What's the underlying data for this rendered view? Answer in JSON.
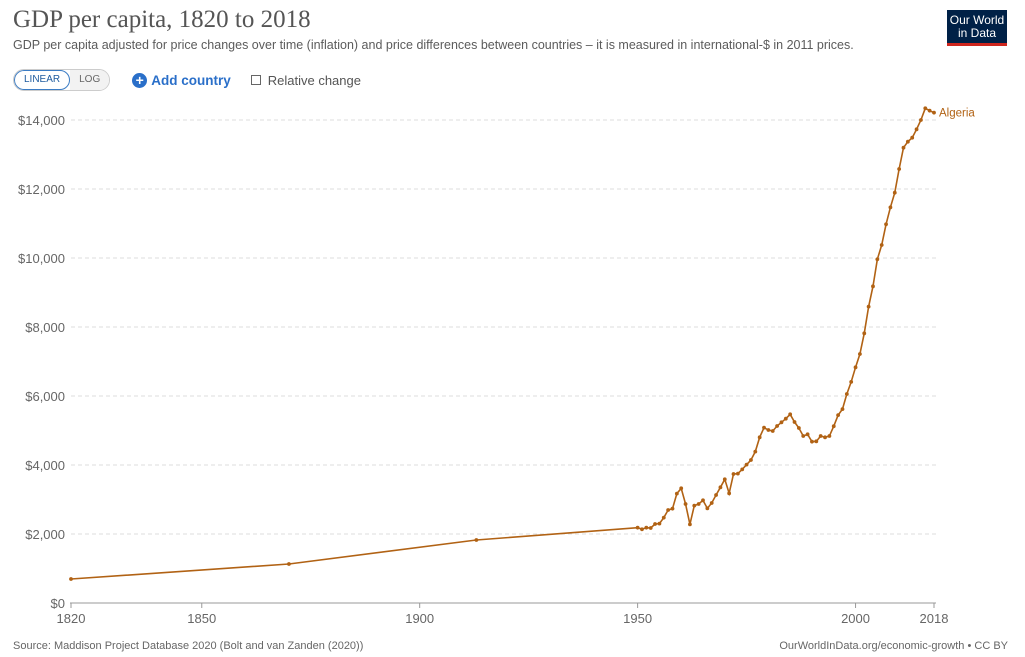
{
  "header": {
    "title": "GDP per capita, 1820 to 2018",
    "subtitle": "GDP per capita adjusted for price changes over time (inflation) and price differences between countries – it is measured in international-$ in 2011 prices.",
    "logo_line1": "Our World",
    "logo_line2": "in Data"
  },
  "controls": {
    "linear": "LINEAR",
    "log": "LOG",
    "add_country": "Add country",
    "relative_change": "Relative change"
  },
  "footer": {
    "source": "Source: Maddison Project Database 2020 (Bolt and van Zanden (2020))",
    "link": "OurWorldInData.org/economic-growth • CC BY"
  },
  "chart_data": {
    "type": "line",
    "scale": "linear",
    "grid": true,
    "ylim": [
      0,
      14000
    ],
    "xlim": [
      1820,
      2018
    ],
    "yticks": [
      0,
      2000,
      4000,
      6000,
      8000,
      10000,
      12000,
      14000
    ],
    "ytick_labels": [
      "$0",
      "$2,000",
      "$4,000",
      "$6,000",
      "$8,000",
      "$10,000",
      "$12,000",
      "$14,000"
    ],
    "xticks": [
      1820,
      1850,
      1900,
      1950,
      2000,
      2018
    ],
    "xtick_labels": [
      "1820",
      "1850",
      "1900",
      "1950",
      "2000",
      "2018"
    ],
    "series": [
      {
        "name": "Algeria",
        "color": "#b16214",
        "x": [
          1820,
          1870,
          1913,
          1950,
          1951,
          1952,
          1953,
          1954,
          1955,
          1956,
          1957,
          1958,
          1959,
          1960,
          1961,
          1962,
          1963,
          1964,
          1965,
          1966,
          1967,
          1968,
          1969,
          1970,
          1971,
          1972,
          1973,
          1974,
          1975,
          1976,
          1977,
          1978,
          1979,
          1980,
          1981,
          1982,
          1983,
          1984,
          1985,
          1986,
          1987,
          1988,
          1989,
          1990,
          1991,
          1992,
          1993,
          1994,
          1995,
          1996,
          1997,
          1998,
          1999,
          2000,
          2001,
          2002,
          2003,
          2004,
          2005,
          2006,
          2007,
          2008,
          2009,
          2010,
          2011,
          2012,
          2013,
          2014,
          2015,
          2016,
          2017,
          2018
        ],
        "y": [
          696,
          1130,
          1826,
          2183,
          2136,
          2183,
          2174,
          2290,
          2300,
          2473,
          2696,
          2734,
          3170,
          3324,
          2870,
          2280,
          2821,
          2870,
          2976,
          2744,
          2899,
          3130,
          3353,
          3585,
          3179,
          3739,
          3749,
          3874,
          4010,
          4145,
          4387,
          4802,
          5082,
          5014,
          4985,
          5130,
          5237,
          5342,
          5469,
          5246,
          5072,
          4840,
          4889,
          4676,
          4686,
          4840,
          4802,
          4840,
          5125,
          5445,
          5620,
          6058,
          6410,
          6831,
          7217,
          7817,
          8589,
          9179,
          9962,
          10377,
          10977,
          11469,
          11893,
          12580,
          13197,
          13371,
          13487,
          13730,
          14000,
          14339,
          14270,
          14212
        ]
      }
    ]
  }
}
